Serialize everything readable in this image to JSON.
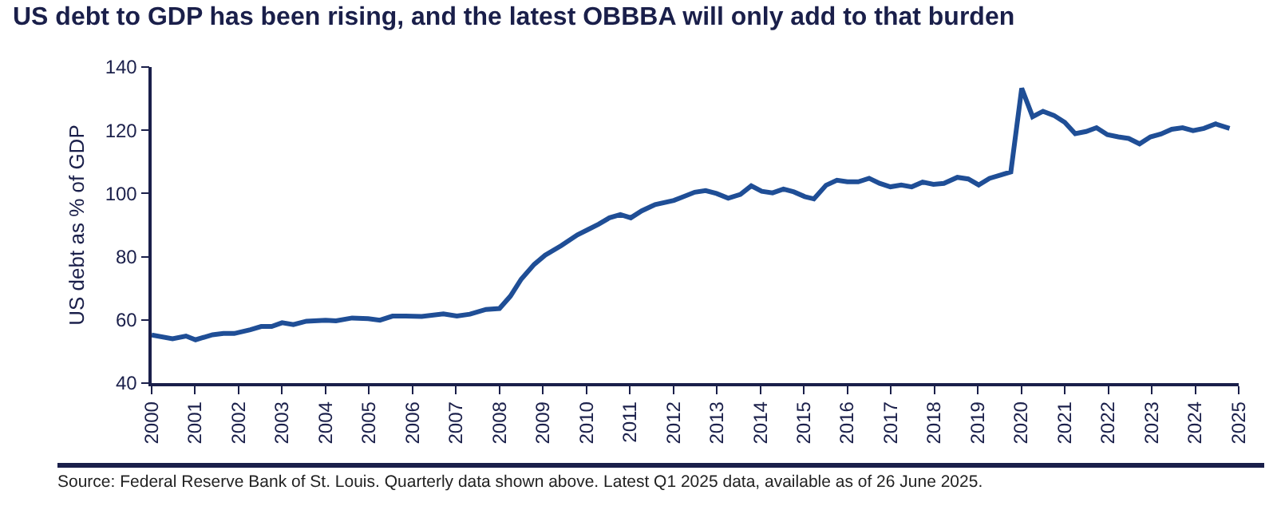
{
  "chart_data": {
    "type": "line",
    "title": "US debt to GDP has been rising, and the latest OBBBA will only add to that burden",
    "ylabel": "US debt as % of GDP",
    "annotations": [
      "Source: Federal Reserve Bank of St. Louis. Quarterly data shown above. Latest Q1 2025 data, available as of 26 June 2025."
    ],
    "series": [
      {
        "color": "#1f4e96",
        "x": [
          2000.0,
          2000.48,
          2000.79,
          2001.01,
          2001.4,
          2001.65,
          2001.9,
          2002.27,
          2002.52,
          2002.76,
          2003.0,
          2003.26,
          2003.56,
          2004.0,
          2004.24,
          2004.61,
          2004.98,
          2005.25,
          2005.54,
          2005.84,
          2006.21,
          2006.71,
          2007.02,
          2007.32,
          2007.69,
          2008.0,
          2008.25,
          2008.5,
          2008.8,
          2009.05,
          2009.42,
          2009.79,
          2010.04,
          2010.28,
          2010.53,
          2010.78,
          2011.02,
          2011.27,
          2011.58,
          2012.01,
          2012.18,
          2012.49,
          2012.74,
          2012.99,
          2013.26,
          2013.54,
          2013.79,
          2014.03,
          2014.28,
          2014.53,
          2014.77,
          2015.02,
          2015.23,
          2015.51,
          2015.76,
          2016.0,
          2016.25,
          2016.5,
          2016.74,
          2016.99,
          2017.24,
          2017.48,
          2017.73,
          2017.98,
          2018.22,
          2018.53,
          2018.78,
          2019.02,
          2019.27,
          2019.52,
          2019.76,
          2020.01,
          2020.26,
          2020.5,
          2020.75,
          2021.0,
          2021.24,
          2021.49,
          2021.73,
          2021.98,
          2022.23,
          2022.47,
          2022.72,
          2022.97,
          2023.21,
          2023.46,
          2023.71,
          2023.95,
          2024.2,
          2024.47,
          2024.79
        ],
        "values": [
          55.2,
          54,
          54.9,
          53.7,
          55.3,
          55.7,
          55.7,
          56.9,
          57.9,
          57.9,
          59.1,
          58.5,
          59.6,
          59.9,
          59.7,
          60.6,
          60.4,
          59.9,
          61.2,
          61.2,
          61.1,
          61.9,
          61.2,
          61.8,
          63.3,
          63.6,
          67.5,
          72.9,
          77.6,
          80.5,
          83.5,
          86.9,
          88.6,
          90.3,
          92.3,
          93.3,
          92.3,
          94.5,
          96.5,
          97.8,
          98.7,
          100.4,
          100.9,
          100.0,
          98.5,
          99.7,
          102.4,
          100.7,
          100.2,
          101.4,
          100.5,
          99.0,
          98.3,
          102.6,
          104.2,
          103.7,
          103.7,
          104.8,
          103.2,
          102.1,
          102.7,
          102.1,
          103.6,
          102.9,
          103.2,
          105.1,
          104.6,
          102.7,
          104.8,
          105.8,
          106.8,
          133.3,
          124.3,
          126,
          124.7,
          122.5,
          118.9,
          119.6,
          120.8,
          118.6,
          117.9,
          117.4,
          115.7,
          117.9,
          118.8,
          120.3,
          120.8,
          119.9,
          120.6,
          122,
          120.6
        ]
      }
    ],
    "xlim": [
      2000,
      2025
    ],
    "xticks": [
      2000,
      2001,
      2002,
      2003,
      2004,
      2005,
      2006,
      2007,
      2008,
      2009,
      2010,
      2011,
      2012,
      2013,
      2014,
      2015,
      2016,
      2017,
      2018,
      2019,
      2020,
      2021,
      2022,
      2023,
      2024,
      2025
    ],
    "ylim": [
      40,
      140
    ],
    "yticks": [
      40,
      60,
      80,
      100,
      120,
      140
    ],
    "grid": false,
    "marker": "none",
    "line_style": "solid"
  }
}
